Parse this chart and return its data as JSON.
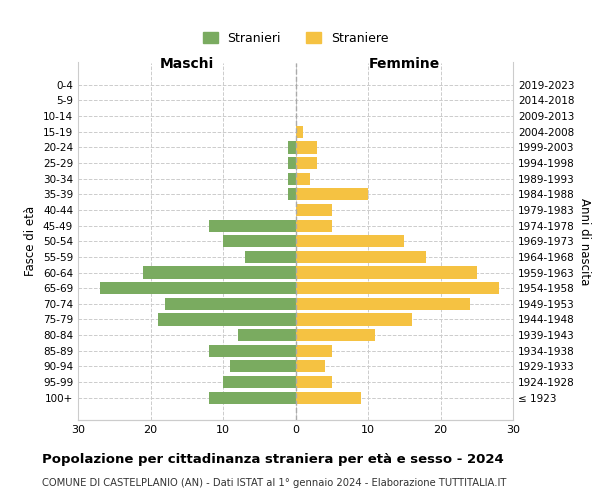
{
  "age_groups": [
    "100+",
    "95-99",
    "90-94",
    "85-89",
    "80-84",
    "75-79",
    "70-74",
    "65-69",
    "60-64",
    "55-59",
    "50-54",
    "45-49",
    "40-44",
    "35-39",
    "30-34",
    "25-29",
    "20-24",
    "15-19",
    "10-14",
    "5-9",
    "0-4"
  ],
  "birth_years": [
    "≤ 1923",
    "1924-1928",
    "1929-1933",
    "1934-1938",
    "1939-1943",
    "1944-1948",
    "1949-1953",
    "1954-1958",
    "1959-1963",
    "1964-1968",
    "1969-1973",
    "1974-1978",
    "1979-1983",
    "1984-1988",
    "1989-1993",
    "1994-1998",
    "1999-2003",
    "2004-2008",
    "2009-2013",
    "2014-2018",
    "2019-2023"
  ],
  "maschi": [
    0,
    0,
    0,
    0,
    1,
    1,
    1,
    1,
    0,
    12,
    10,
    7,
    21,
    27,
    18,
    19,
    8,
    12,
    9,
    10,
    12
  ],
  "femmine": [
    0,
    0,
    0,
    1,
    3,
    3,
    2,
    10,
    5,
    5,
    15,
    18,
    25,
    28,
    24,
    16,
    11,
    5,
    4,
    5,
    9
  ],
  "color_maschi": "#7aab60",
  "color_femmine": "#f5c242",
  "title": "Popolazione per cittadinanza straniera per età e sesso - 2024",
  "subtitle": "COMUNE DI CASTELPLANIO (AN) - Dati ISTAT al 1° gennaio 2024 - Elaborazione TUTTITALIA.IT",
  "xlabel_left": "Maschi",
  "xlabel_right": "Femmine",
  "ylabel_left": "Fasce di età",
  "ylabel_right": "Anni di nascita",
  "xlim": 30,
  "legend_stranieri": "Stranieri",
  "legend_straniere": "Straniere",
  "background_color": "#ffffff",
  "grid_color": "#cccccc"
}
